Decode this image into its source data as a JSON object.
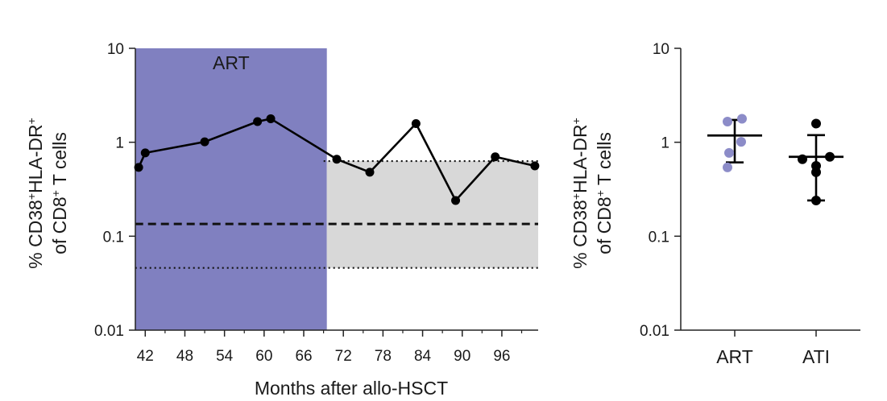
{
  "colors": {
    "art_band": "#8080c0",
    "reference_band": "#d8d8d8",
    "series_black": "#000000",
    "art_points": "#8c8cc8",
    "ati_points": "#000000"
  },
  "chart_data": [
    {
      "type": "line",
      "title": "",
      "xlabel": "Months after allo-HSCT",
      "ylabel_parts": [
        "% CD38",
        "+",
        "HLA-DR",
        "+",
        "of CD8",
        "+",
        " T cells"
      ],
      "yscale": "log",
      "ylim": [
        0.01,
        10
      ],
      "yticks": [
        "0.01",
        "0.1",
        "1",
        "10"
      ],
      "ytick_values": [
        0.01,
        0.1,
        1,
        10
      ],
      "xlim": [
        40.5,
        101.5
      ],
      "xticks": [
        "42",
        "48",
        "54",
        "60",
        "66",
        "72",
        "78",
        "84",
        "90",
        "96"
      ],
      "xtick_values": [
        42,
        48,
        54,
        60,
        66,
        72,
        78,
        84,
        90,
        96
      ],
      "art_period": {
        "label": "ART",
        "x_start": 40.5,
        "x_end": 69.5
      },
      "reference_range": {
        "lower": 0.046,
        "median": 0.135,
        "upper": 0.63
      },
      "series": [
        {
          "x": [
            41,
            42,
            51,
            59,
            61,
            71,
            76,
            83,
            89,
            95,
            101
          ],
          "y": [
            0.54,
            0.77,
            1.01,
            1.66,
            1.78,
            0.66,
            0.48,
            1.58,
            0.24,
            0.7,
            0.56
          ]
        }
      ]
    },
    {
      "type": "scatter",
      "title": "",
      "xlabel": "",
      "ylabel_parts": [
        "% CD38",
        "+",
        "HLA-DR",
        "+",
        "of CD8",
        "+",
        " T cells"
      ],
      "yscale": "log",
      "ylim": [
        0.01,
        10
      ],
      "yticks": [
        "0.01",
        "0.1",
        "1",
        "10"
      ],
      "ytick_values": [
        0.01,
        0.1,
        1,
        10
      ],
      "categories": [
        "ART",
        "ATI"
      ],
      "groups": [
        {
          "category": "ART",
          "values": [
            1.78,
            1.66,
            1.01,
            0.77,
            0.54
          ],
          "mean": 1.18,
          "error_low": 0.61,
          "error_high": 1.73
        },
        {
          "category": "ATI",
          "values": [
            1.58,
            0.7,
            0.66,
            0.56,
            0.48,
            0.24
          ],
          "mean": 0.7,
          "error_low": 0.24,
          "error_high": 1.19
        }
      ]
    }
  ]
}
